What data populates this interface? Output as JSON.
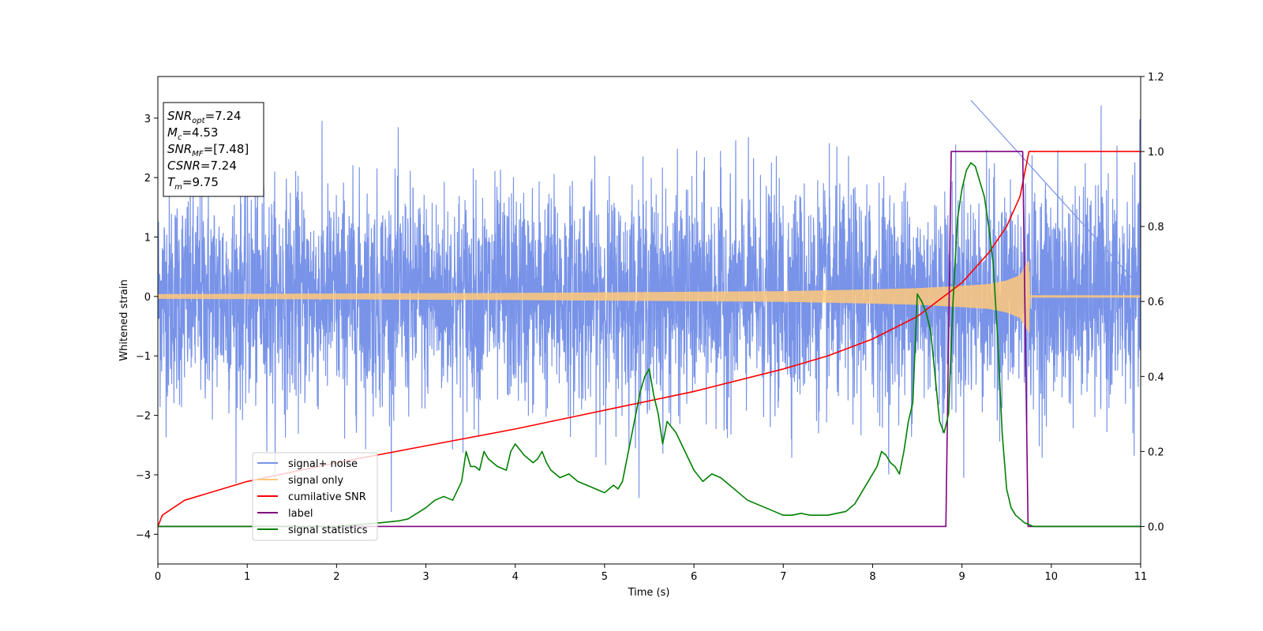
{
  "chart_data": {
    "type": "line",
    "xlabel": "Time (s)",
    "ylabel": "Whitened strain",
    "xlim": [
      0,
      11
    ],
    "ylim_left": [
      -4.5,
      3.7
    ],
    "ylim_right": [
      -0.1,
      1.2
    ],
    "x_ticks": [
      0,
      1,
      2,
      3,
      4,
      5,
      6,
      7,
      8,
      9,
      10,
      11
    ],
    "y_ticks_left": [
      -4,
      -3,
      -2,
      -1,
      0,
      1,
      2,
      3
    ],
    "y_ticks_right": [
      0.0,
      0.2,
      0.4,
      0.6,
      0.8,
      1.0,
      1.2
    ],
    "grid": false,
    "legend_position": "lower-left",
    "annotation": {
      "lines": [
        {
          "name": "SNR",
          "sub": "opt",
          "value": "=7.24"
        },
        {
          "name": "M",
          "sub": "c",
          "value": "=4.53"
        },
        {
          "name": "SNR",
          "sub": "MF",
          "value": "=[7.48]"
        },
        {
          "name": "CSNR",
          "sub": "",
          "value": "=7.24"
        },
        {
          "name": "T",
          "sub": "m",
          "value": "=9.75"
        }
      ]
    },
    "series": [
      {
        "name": "signal+ noise",
        "axis": "left",
        "color": "#7893e8",
        "description_values": {
          "mean": 0,
          "std": 0.9,
          "range": [
            -4.15,
            3.3
          ]
        }
      },
      {
        "name": "signal only",
        "axis": "left",
        "color": "#ffc87a",
        "envelope": {
          "t": [
            0,
            2,
            4,
            6,
            7,
            8,
            8.5,
            9,
            9.3,
            9.5,
            9.65,
            9.75,
            9.76,
            11
          ],
          "amp": [
            0.03,
            0.04,
            0.05,
            0.07,
            0.08,
            0.11,
            0.13,
            0.17,
            0.2,
            0.26,
            0.35,
            0.6,
            0.01,
            0.01
          ]
        }
      },
      {
        "name": "cumilative SNR",
        "axis": "right",
        "color": "#ff0000",
        "x": [
          0,
          0.05,
          0.3,
          1,
          2,
          3,
          4,
          5,
          6,
          7,
          7.5,
          8,
          8.5,
          9,
          9.3,
          9.5,
          9.65,
          9.75,
          11
        ],
        "y": [
          0.0,
          0.03,
          0.07,
          0.12,
          0.17,
          0.215,
          0.26,
          0.31,
          0.36,
          0.42,
          0.455,
          0.5,
          0.56,
          0.65,
          0.73,
          0.8,
          0.88,
          1.0,
          1.0
        ]
      },
      {
        "name": "label",
        "axis": "right",
        "color": "#800080",
        "x": [
          0,
          8.82,
          8.88,
          9.68,
          9.74,
          11
        ],
        "y": [
          0,
          0,
          1,
          1,
          0,
          0
        ]
      },
      {
        "name": "signal statistics",
        "axis": "right",
        "color": "#008000",
        "x": [
          0,
          1,
          2,
          2.5,
          2.7,
          2.8,
          2.9,
          3.0,
          3.1,
          3.15,
          3.2,
          3.3,
          3.4,
          3.45,
          3.5,
          3.55,
          3.6,
          3.65,
          3.7,
          3.8,
          3.9,
          3.95,
          4.0,
          4.1,
          4.2,
          4.25,
          4.3,
          4.35,
          4.4,
          4.5,
          4.6,
          4.7,
          4.8,
          4.9,
          5.0,
          5.05,
          5.1,
          5.15,
          5.2,
          5.3,
          5.35,
          5.4,
          5.45,
          5.5,
          5.55,
          5.6,
          5.65,
          5.7,
          5.8,
          5.9,
          6.0,
          6.1,
          6.2,
          6.3,
          6.4,
          6.5,
          6.6,
          6.7,
          6.8,
          6.9,
          7.0,
          7.1,
          7.2,
          7.3,
          7.4,
          7.5,
          7.6,
          7.7,
          7.8,
          7.85,
          7.9,
          8.0,
          8.05,
          8.1,
          8.15,
          8.2,
          8.25,
          8.3,
          8.35,
          8.4,
          8.45,
          8.5,
          8.55,
          8.6,
          8.65,
          8.7,
          8.75,
          8.8,
          8.85,
          8.9,
          8.95,
          9.0,
          9.05,
          9.1,
          9.15,
          9.2,
          9.25,
          9.3,
          9.35,
          9.4,
          9.45,
          9.5,
          9.55,
          9.6,
          9.65,
          9.7,
          9.75,
          9.8,
          10,
          11
        ],
        "y": [
          0.0,
          0.0,
          0.0,
          0.01,
          0.015,
          0.02,
          0.035,
          0.05,
          0.07,
          0.075,
          0.08,
          0.07,
          0.12,
          0.2,
          0.16,
          0.16,
          0.15,
          0.2,
          0.18,
          0.16,
          0.15,
          0.2,
          0.22,
          0.19,
          0.17,
          0.18,
          0.2,
          0.17,
          0.15,
          0.13,
          0.14,
          0.12,
          0.11,
          0.1,
          0.09,
          0.1,
          0.11,
          0.1,
          0.12,
          0.24,
          0.3,
          0.36,
          0.4,
          0.42,
          0.35,
          0.3,
          0.22,
          0.28,
          0.25,
          0.2,
          0.15,
          0.12,
          0.14,
          0.13,
          0.11,
          0.09,
          0.07,
          0.06,
          0.05,
          0.04,
          0.03,
          0.03,
          0.035,
          0.03,
          0.03,
          0.03,
          0.035,
          0.04,
          0.06,
          0.08,
          0.1,
          0.14,
          0.16,
          0.2,
          0.19,
          0.17,
          0.16,
          0.14,
          0.2,
          0.28,
          0.33,
          0.62,
          0.6,
          0.57,
          0.52,
          0.4,
          0.28,
          0.25,
          0.3,
          0.6,
          0.82,
          0.9,
          0.95,
          0.97,
          0.96,
          0.92,
          0.88,
          0.8,
          0.7,
          0.5,
          0.25,
          0.1,
          0.05,
          0.03,
          0.02,
          0.01,
          0.005,
          0.0,
          0.0,
          0.0
        ]
      }
    ]
  }
}
